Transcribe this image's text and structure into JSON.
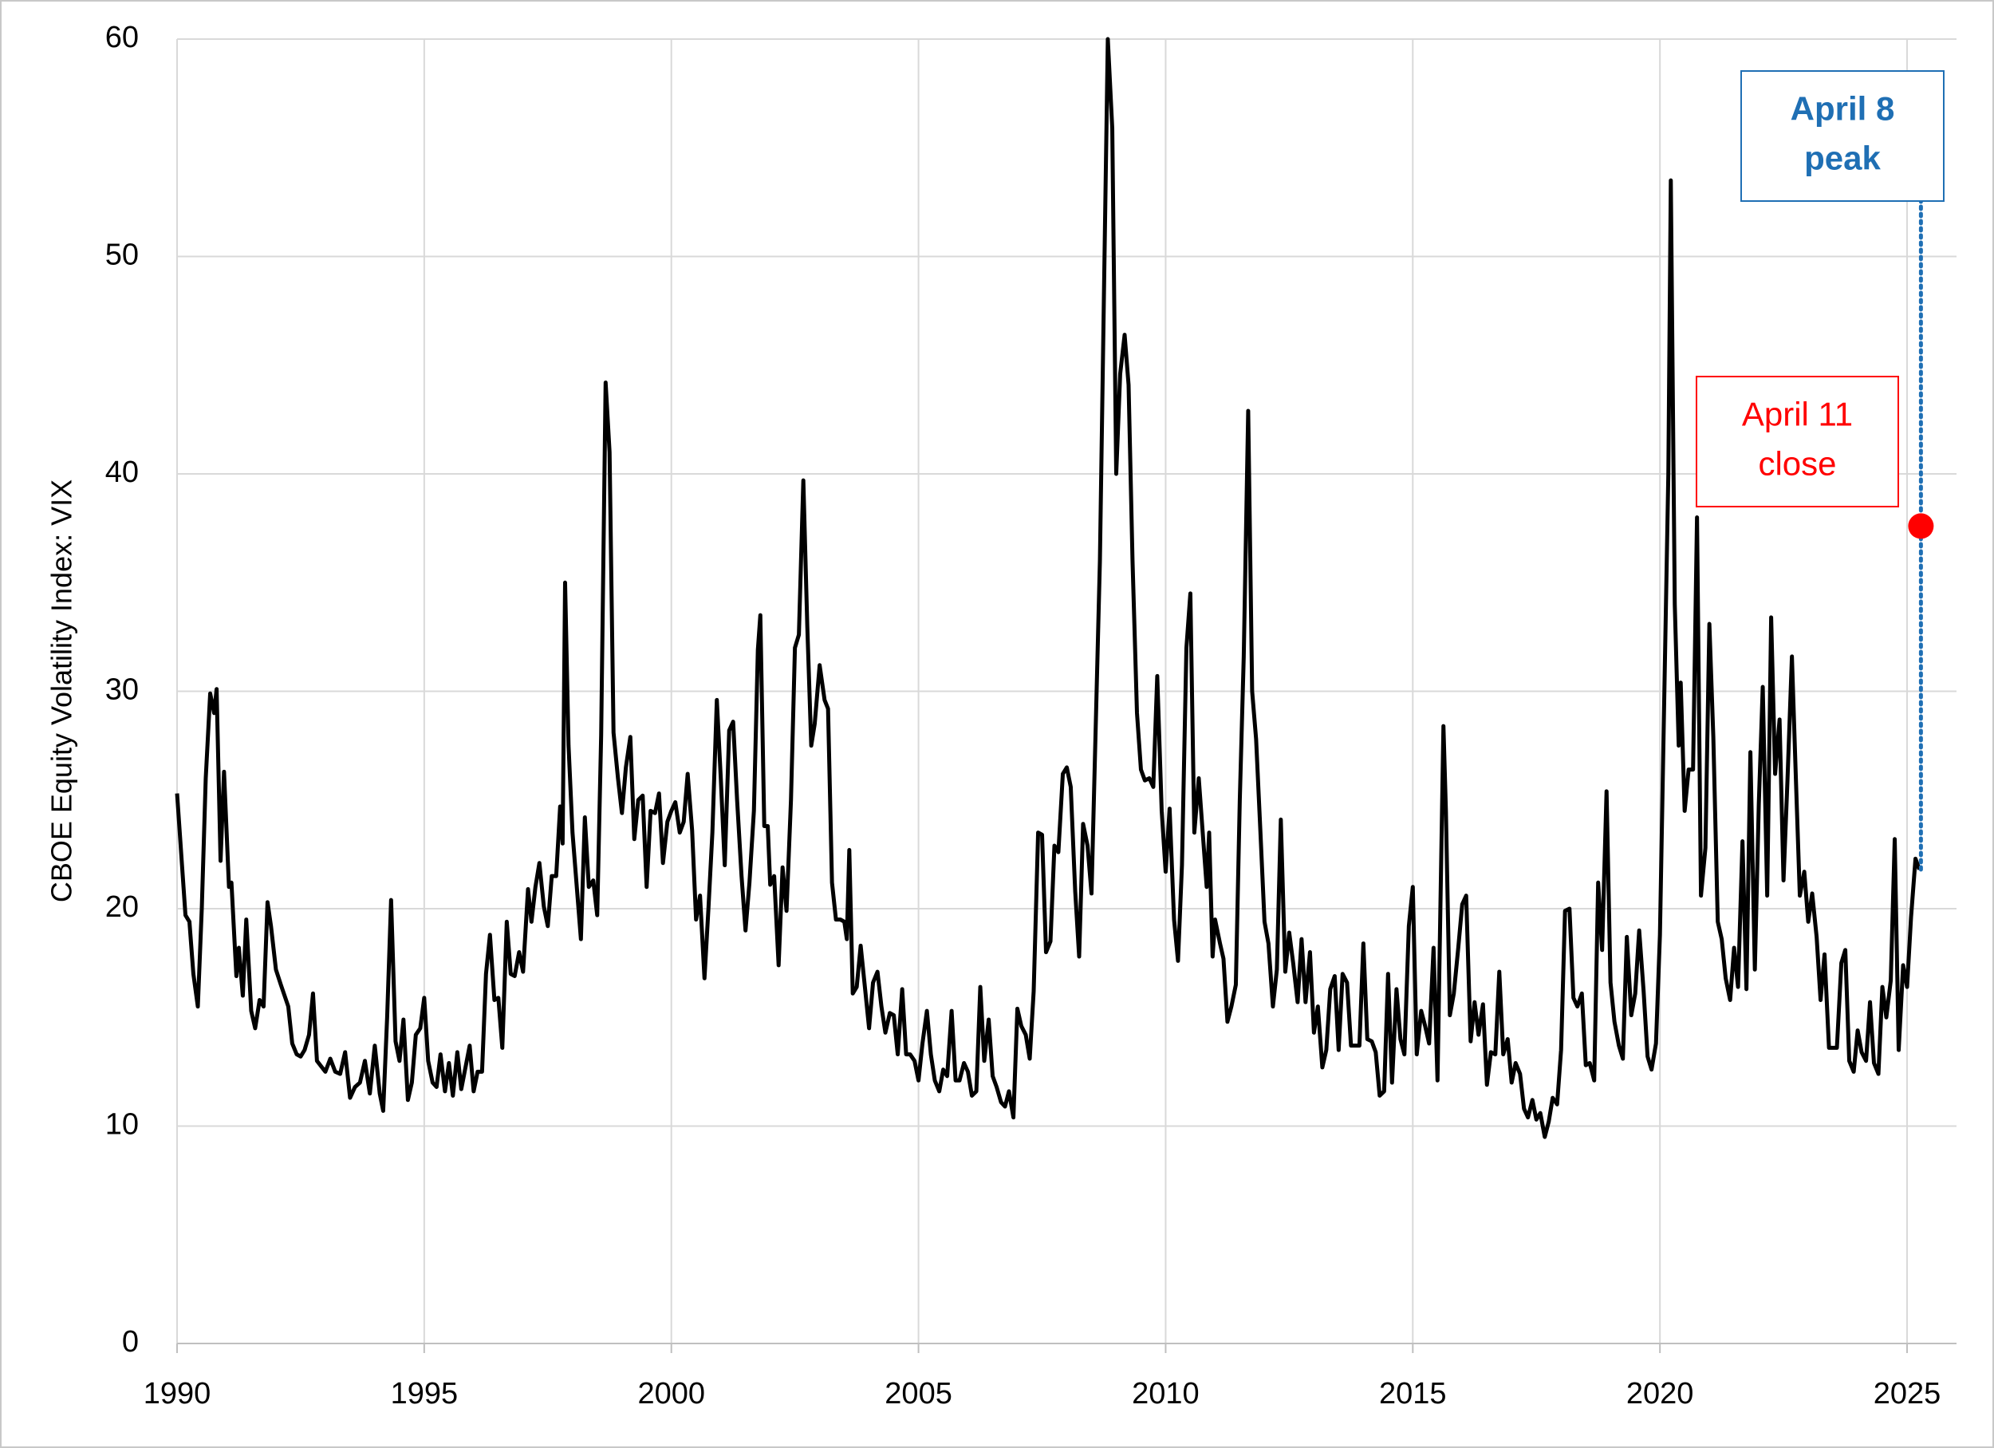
{
  "chart_data": {
    "type": "line",
    "ylabel": "CBOE Equity Volatility Index: VIX",
    "xlim": [
      1990,
      2026
    ],
    "xticks": [
      1990,
      1995,
      2000,
      2005,
      2010,
      2015,
      2020,
      2025
    ],
    "ylim": [
      0,
      60
    ],
    "yticks": [
      0,
      10,
      20,
      30,
      40,
      50,
      60
    ],
    "grid": true,
    "x": [
      1990.0,
      1990.1,
      1990.17,
      1990.25,
      1990.33,
      1990.42,
      1990.5,
      1990.58,
      1990.67,
      1990.75,
      1990.8,
      1990.88,
      1990.95,
      1991.05,
      1991.1,
      1991.2,
      1991.25,
      1991.33,
      1991.4,
      1991.5,
      1991.58,
      1991.67,
      1991.75,
      1991.83,
      1991.9,
      1992.0,
      1992.1,
      1992.25,
      1992.33,
      1992.42,
      1992.5,
      1992.58,
      1992.67,
      1992.75,
      1992.83,
      1993.0,
      1993.1,
      1993.2,
      1993.3,
      1993.4,
      1993.5,
      1993.6,
      1993.7,
      1993.8,
      1993.9,
      1994.0,
      1994.1,
      1994.17,
      1994.25,
      1994.33,
      1994.42,
      1994.5,
      1994.58,
      1994.67,
      1994.75,
      1994.83,
      1994.92,
      1995.0,
      1995.08,
      1995.17,
      1995.25,
      1995.33,
      1995.42,
      1995.5,
      1995.58,
      1995.67,
      1995.75,
      1995.92,
      1996.0,
      1996.08,
      1996.17,
      1996.25,
      1996.33,
      1996.42,
      1996.5,
      1996.58,
      1996.67,
      1996.75,
      1996.83,
      1996.92,
      1997.0,
      1997.1,
      1997.17,
      1997.25,
      1997.33,
      1997.42,
      1997.5,
      1997.58,
      1997.67,
      1997.75,
      1997.8,
      1997.85,
      1997.92,
      1998.0,
      1998.17,
      1998.25,
      1998.33,
      1998.42,
      1998.5,
      1998.58,
      1998.67,
      1998.75,
      1998.83,
      1998.92,
      1999.0,
      1999.08,
      1999.17,
      1999.25,
      1999.33,
      1999.42,
      1999.5,
      1999.58,
      1999.67,
      1999.75,
      1999.83,
      1999.92,
      2000.0,
      2000.08,
      2000.17,
      2000.25,
      2000.33,
      2000.42,
      2000.5,
      2000.58,
      2000.67,
      2000.75,
      2000.83,
      2000.92,
      2001.0,
      2001.08,
      2001.17,
      2001.25,
      2001.33,
      2001.42,
      2001.5,
      2001.58,
      2001.67,
      2001.75,
      2001.8,
      2001.88,
      2001.95,
      2002.0,
      2002.08,
      2002.17,
      2002.25,
      2002.33,
      2002.42,
      2002.5,
      2002.58,
      2002.67,
      2002.75,
      2002.83,
      2002.9,
      2003.0,
      2003.1,
      2003.17,
      2003.25,
      2003.33,
      2003.42,
      2003.5,
      2003.55,
      2003.6,
      2003.67,
      2003.75,
      2003.83,
      2003.92,
      2004.0,
      2004.08,
      2004.17,
      2004.25,
      2004.33,
      2004.42,
      2004.5,
      2004.58,
      2004.67,
      2004.75,
      2004.83,
      2004.92,
      2005.0,
      2005.08,
      2005.17,
      2005.25,
      2005.33,
      2005.42,
      2005.5,
      2005.58,
      2005.67,
      2005.75,
      2005.83,
      2005.92,
      2006.0,
      2006.08,
      2006.17,
      2006.25,
      2006.33,
      2006.42,
      2006.5,
      2006.58,
      2006.67,
      2006.75,
      2006.83,
      2006.92,
      2007.0,
      2007.08,
      2007.17,
      2007.25,
      2007.33,
      2007.42,
      2007.5,
      2007.58,
      2007.67,
      2007.75,
      2007.83,
      2007.92,
      2008.0,
      2008.08,
      2008.17,
      2008.25,
      2008.33,
      2008.42,
      2008.5,
      2008.67,
      2008.83,
      2008.92,
      2009.0,
      2009.08,
      2009.17,
      2009.25,
      2009.33,
      2009.42,
      2009.5,
      2009.58,
      2009.67,
      2009.75,
      2009.83,
      2009.92,
      2010.0,
      2010.08,
      2010.17,
      2010.25,
      2010.33,
      2010.42,
      2010.5,
      2010.58,
      2010.67,
      2010.75,
      2010.83,
      2010.88,
      2010.95,
      2011.0,
      2011.1,
      2011.17,
      2011.25,
      2011.33,
      2011.42,
      2011.5,
      2011.58,
      2011.67,
      2011.75,
      2011.83,
      2011.92,
      2012.0,
      2012.08,
      2012.17,
      2012.25,
      2012.33,
      2012.42,
      2012.5,
      2012.58,
      2012.67,
      2012.75,
      2012.83,
      2012.92,
      2013.0,
      2013.08,
      2013.17,
      2013.25,
      2013.33,
      2013.42,
      2013.5,
      2013.58,
      2013.67,
      2013.75,
      2013.83,
      2013.92,
      2014.0,
      2014.08,
      2014.17,
      2014.25,
      2014.33,
      2014.42,
      2014.5,
      2014.58,
      2014.67,
      2014.75,
      2014.83,
      2014.92,
      2015.0,
      2015.08,
      2015.17,
      2015.25,
      2015.33,
      2015.42,
      2015.5,
      2015.62,
      2015.67,
      2015.75,
      2015.83,
      2015.92,
      2016.0,
      2016.08,
      2016.17,
      2016.25,
      2016.33,
      2016.42,
      2016.5,
      2016.58,
      2016.67,
      2016.75,
      2016.83,
      2016.92,
      2017.0,
      2017.08,
      2017.17,
      2017.25,
      2017.33,
      2017.42,
      2017.5,
      2017.58,
      2017.67,
      2017.75,
      2017.83,
      2017.92,
      2018.0,
      2018.08,
      2018.17,
      2018.25,
      2018.33,
      2018.42,
      2018.5,
      2018.58,
      2018.67,
      2018.75,
      2018.83,
      2018.92,
      2019.0,
      2019.08,
      2019.17,
      2019.25,
      2019.33,
      2019.42,
      2019.5,
      2019.58,
      2019.67,
      2019.75,
      2019.83,
      2019.92,
      2020.0,
      2020.17,
      2020.22,
      2020.3,
      2020.38,
      2020.42,
      2020.5,
      2020.58,
      2020.67,
      2020.75,
      2020.83,
      2020.92,
      2021.0,
      2021.08,
      2021.17,
      2021.25,
      2021.33,
      2021.42,
      2021.5,
      2021.58,
      2021.67,
      2021.75,
      2021.83,
      2021.92,
      2022.0,
      2022.08,
      2022.17,
      2022.25,
      2022.33,
      2022.42,
      2022.5,
      2022.58,
      2022.67,
      2022.75,
      2022.83,
      2022.92,
      2023.0,
      2023.08,
      2023.17,
      2023.25,
      2023.33,
      2023.42,
      2023.5,
      2023.58,
      2023.67,
      2023.75,
      2023.83,
      2023.92,
      2024.0,
      2024.08,
      2024.17,
      2024.25,
      2024.33,
      2024.42,
      2024.5,
      2024.58,
      2024.67,
      2024.75,
      2024.83,
      2024.92,
      2025.0,
      2025.08,
      2025.17,
      2025.25
    ],
    "series": [
      {
        "color": "#000000",
        "values": [
          25.3,
          22,
          19.7,
          19.4,
          17,
          15.5,
          20,
          26,
          29.9,
          29,
          30.1,
          22.2,
          26.3,
          21,
          21.2,
          16.9,
          18.2,
          16,
          19.5,
          15.3,
          14.5,
          15.8,
          15.5,
          20.3,
          19.2,
          17.2,
          16.5,
          15.5,
          13.8,
          13.3,
          13.2,
          13.5,
          14.2,
          16.1,
          13,
          12.5,
          13.1,
          12.5,
          12.4,
          13.4,
          11.3,
          11.8,
          12,
          13,
          11.5,
          13.7,
          11.5,
          10.7,
          15,
          20.4,
          13.9,
          13,
          14.9,
          11.2,
          12,
          14.2,
          14.5,
          15.9,
          13,
          12,
          11.8,
          13.3,
          11.6,
          12.9,
          11.4,
          13.4,
          11.7,
          13.7,
          11.6,
          12.5,
          12.5,
          17,
          18.8,
          15.8,
          15.9,
          13.6,
          19.4,
          17,
          16.9,
          18,
          17.1,
          20.9,
          19.4,
          21,
          22.1,
          20.1,
          19.2,
          21.5,
          21.5,
          24.7,
          23,
          35,
          27.5,
          23.5,
          18.6,
          24.2,
          21,
          21.3,
          19.7,
          28,
          44.2,
          41,
          28.1,
          26,
          24.4,
          26.5,
          27.9,
          23.2,
          25,
          25.2,
          21,
          24.5,
          24.4,
          25.3,
          22.1,
          24,
          24.5,
          24.9,
          23.5,
          24,
          26.2,
          23.6,
          19.5,
          20.6,
          16.8,
          20,
          23.5,
          29.6,
          26,
          22,
          28.2,
          28.6,
          25,
          21.5,
          19,
          21.2,
          24.5,
          31.9,
          33.5,
          23.8,
          23.8,
          21.1,
          21.5,
          17.4,
          21.9,
          19.9,
          25,
          32,
          32.6,
          39.7,
          33,
          27.5,
          28.5,
          31.2,
          29.6,
          29.2,
          21.2,
          19.5,
          19.5,
          19.4,
          18.6,
          22.7,
          16.1,
          16.4,
          18.3,
          16.3,
          14.5,
          16.6,
          17.1,
          15.5,
          14.3,
          15.2,
          15.1,
          13.3,
          16.3,
          13.3,
          13.3,
          13,
          12.1,
          13.8,
          15.3,
          13.3,
          12.1,
          11.6,
          12.6,
          12.3,
          15.3,
          12.1,
          12.1,
          12.9,
          12.5,
          11.4,
          11.6,
          16.4,
          13,
          14.9,
          12.3,
          11.8,
          11.1,
          10.9,
          11.6,
          10.4,
          15.4,
          14.6,
          14.2,
          13.1,
          16.2,
          23.5,
          23.4,
          18,
          18.5,
          22.9,
          22.6,
          26.2,
          26.5,
          25.6,
          20.8,
          17.8,
          23.9,
          22.9,
          20.7,
          36,
          60,
          55.9,
          40,
          44.6,
          46.4,
          44.1,
          36,
          29,
          26.4,
          25.9,
          26,
          25.6,
          30.7,
          24.5,
          21.7,
          24.6,
          19.5,
          17.6,
          22,
          32,
          34.5,
          23.5,
          26,
          23.5,
          21,
          23.5,
          17.8,
          19.5,
          18.4,
          17.7,
          14.8,
          15.5,
          16.5,
          25,
          31.6,
          42.9,
          30,
          27.8,
          23.4,
          19.4,
          18.4,
          15.5,
          17.2,
          24.1,
          17.1,
          18.9,
          17.5,
          15.7,
          18.6,
          15.7,
          18,
          14.3,
          15.5,
          12.7,
          13.5,
          16.3,
          16.9,
          13.5,
          17,
          16.6,
          13.7,
          13.7,
          13.7,
          18.4,
          14,
          13.9,
          13.4,
          11.4,
          11.6,
          17,
          12,
          16.3,
          14,
          13.3,
          19.2,
          21,
          13.3,
          15.3,
          14.6,
          13.8,
          18.2,
          12.1,
          28.4,
          24.5,
          15.1,
          16.1,
          18.2,
          20.2,
          20.6,
          13.9,
          15.7,
          14.2,
          15.6,
          11.9,
          13.4,
          13.3,
          17.1,
          13.3,
          14,
          12,
          12.9,
          12.4,
          10.8,
          10.4,
          11.2,
          10.3,
          10.6,
          9.5,
          10.2,
          11.3,
          11,
          13.5,
          19.9,
          20,
          15.9,
          15.5,
          16.1,
          12.8,
          12.9,
          12.1,
          21.2,
          18.1,
          25.4,
          16.6,
          14.8,
          13.7,
          13.1,
          18.7,
          15.1,
          16.1,
          19,
          16.2,
          13.2,
          12.6,
          13.8,
          18.8,
          40,
          53.5,
          34,
          27.5,
          30.4,
          24.5,
          26.4,
          26.4,
          38,
          20.6,
          22.8,
          33.1,
          27.9,
          19.4,
          18.6,
          16.8,
          15.8,
          18.2,
          16.4,
          23.1,
          16.3,
          27.2,
          17.2,
          24.8,
          30.2,
          20.6,
          33.4,
          26.2,
          28.7,
          21.3,
          25.9,
          31.6,
          26,
          20.6,
          21.7,
          19.4,
          20.7,
          18.7,
          15.8,
          17.9,
          13.6,
          13.6,
          13.6,
          17.5,
          18.1,
          13,
          12.5,
          14.4,
          13.4,
          13,
          15.7,
          12.9,
          12.4,
          16.4,
          15,
          16.7,
          23.2,
          13.5,
          17.4,
          16.4,
          19.6,
          22.3,
          21.8
        ]
      }
    ],
    "annotations": [
      {
        "lines": [
          "April 8",
          "peak"
        ],
        "color": "#1f6fb4",
        "x": 2025.28
      },
      {
        "lines": [
          "April 11",
          "close"
        ],
        "color": "#ff0000",
        "x": 2025.28,
        "y": 37.6
      }
    ]
  }
}
